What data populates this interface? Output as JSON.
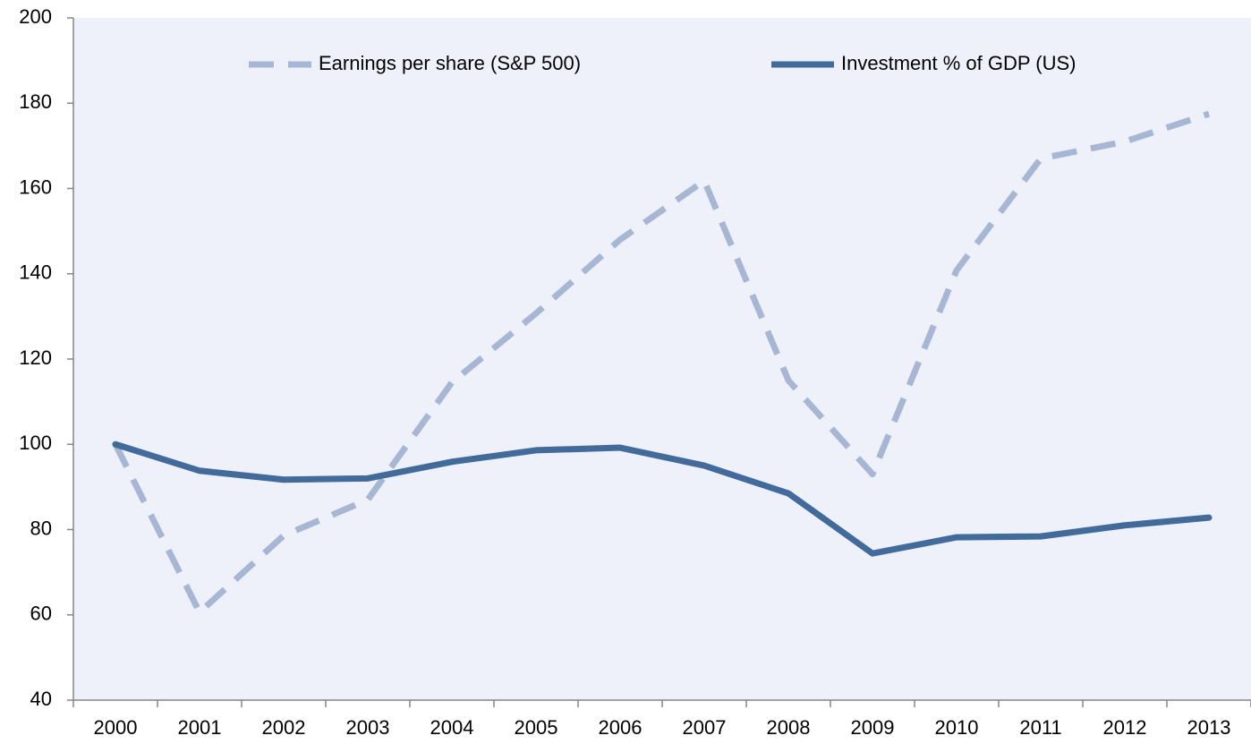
{
  "chart_data": {
    "type": "line",
    "categories": [
      "2000",
      "2001",
      "2002",
      "2003",
      "2004",
      "2005",
      "2006",
      "2007",
      "2008",
      "2009",
      "2010",
      "2011",
      "2012",
      "2013"
    ],
    "series": [
      {
        "name": "Earnings per share (S&P 500)",
        "color": "#a7b6d2",
        "dashed": true,
        "values": [
          100,
          60.6,
          78.6,
          87,
          114.5,
          130.7,
          148,
          161.8,
          115,
          93,
          140.8,
          167,
          171,
          177.5
        ]
      },
      {
        "name": "Investment % of GDP (US)",
        "color": "#426a9b",
        "dashed": false,
        "values": [
          100,
          93.8,
          91.7,
          92,
          95.9,
          98.6,
          99.2,
          95,
          88.5,
          74.4,
          78.2,
          78.4,
          81,
          82.8
        ]
      }
    ],
    "ylim": [
      40,
      200
    ],
    "yticks": [
      40,
      60,
      80,
      100,
      120,
      140,
      160,
      180,
      200
    ],
    "legend": "top"
  }
}
